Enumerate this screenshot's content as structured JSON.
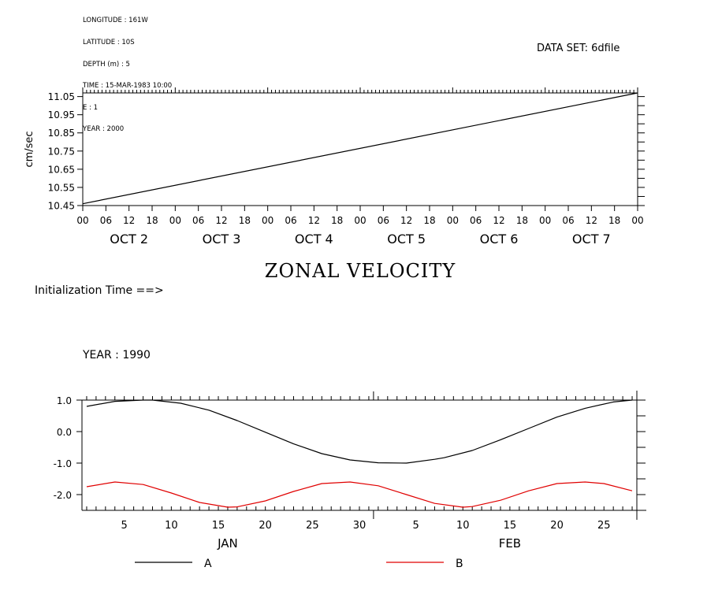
{
  "header": {
    "lines": [
      "LONGITUDE : 161W",
      "LATITUDE : 10S",
      "DEPTH (m) : 5",
      "TIME : 15-MAR-1983 10:00",
      "E : 1",
      "YEAR : 2000"
    ],
    "dataset": "DATA SET: 6dfile"
  },
  "init_label": "Initialization Time ==>",
  "year_label": "YEAR : 1990",
  "colors": {
    "series_a": "#000000",
    "series_b": "#e00000"
  },
  "chart_data": [
    {
      "type": "line",
      "title": "ZONAL VELOCITY",
      "ylabel": "cm/sec",
      "ylim": [
        10.45,
        11.07
      ],
      "yticks": [
        "10.45",
        "10.55",
        "10.65",
        "10.75",
        "10.85",
        "10.95",
        "11.05"
      ],
      "xticks": [
        "00",
        "06",
        "12",
        "18",
        "00",
        "06",
        "12",
        "18",
        "00",
        "06",
        "12",
        "18",
        "00",
        "06",
        "12",
        "18",
        "00",
        "06",
        "12",
        "18",
        "00",
        "06",
        "12",
        "18",
        "00"
      ],
      "day_labels": [
        "OCT  2",
        "OCT  3",
        "OCT  4",
        "OCT  5",
        "OCT  6",
        "OCT  7"
      ],
      "x": [
        "02-OCT 00:00",
        "08-OCT 00:00"
      ],
      "values": [
        10.46,
        11.07
      ],
      "grid": false
    },
    {
      "type": "line",
      "xticks": [
        "5",
        "10",
        "15",
        "20",
        "25",
        "30",
        "5",
        "10",
        "15",
        "20",
        "25"
      ],
      "month_labels": [
        "JAN",
        "FEB"
      ],
      "yticks": [
        "1.0",
        "0.0",
        "-1.0",
        "-2.0"
      ],
      "ylim": [
        -2.5,
        1.0
      ],
      "legend": [
        "A",
        "B"
      ],
      "legend_position": "bottom",
      "grid": false,
      "series": [
        {
          "name": "A",
          "color": "#000000",
          "x": [
            1,
            4,
            7,
            8,
            11,
            14,
            17,
            20,
            23,
            26,
            29,
            32,
            35,
            38,
            39,
            42,
            45,
            48,
            51,
            54,
            57,
            59
          ],
          "values": [
            0.8,
            0.96,
            1.0,
            1.0,
            0.9,
            0.68,
            0.35,
            -0.02,
            -0.39,
            -0.7,
            -0.9,
            -0.99,
            -1.0,
            -0.88,
            -0.83,
            -0.6,
            -0.26,
            0.1,
            0.46,
            0.74,
            0.94,
            1.0
          ]
        },
        {
          "name": "B",
          "color": "#e00000",
          "x": [
            1,
            4,
            7,
            10,
            13,
            16,
            17,
            20,
            23,
            26,
            29,
            32,
            35,
            38,
            41,
            42,
            45,
            48,
            51,
            54,
            56,
            59
          ],
          "values": [
            -1.75,
            -1.6,
            -1.68,
            -1.95,
            -2.25,
            -2.4,
            -2.39,
            -2.2,
            -1.9,
            -1.65,
            -1.6,
            -1.72,
            -2.0,
            -2.28,
            -2.4,
            -2.38,
            -2.18,
            -1.88,
            -1.65,
            -1.6,
            -1.65,
            -1.88
          ]
        }
      ]
    }
  ]
}
